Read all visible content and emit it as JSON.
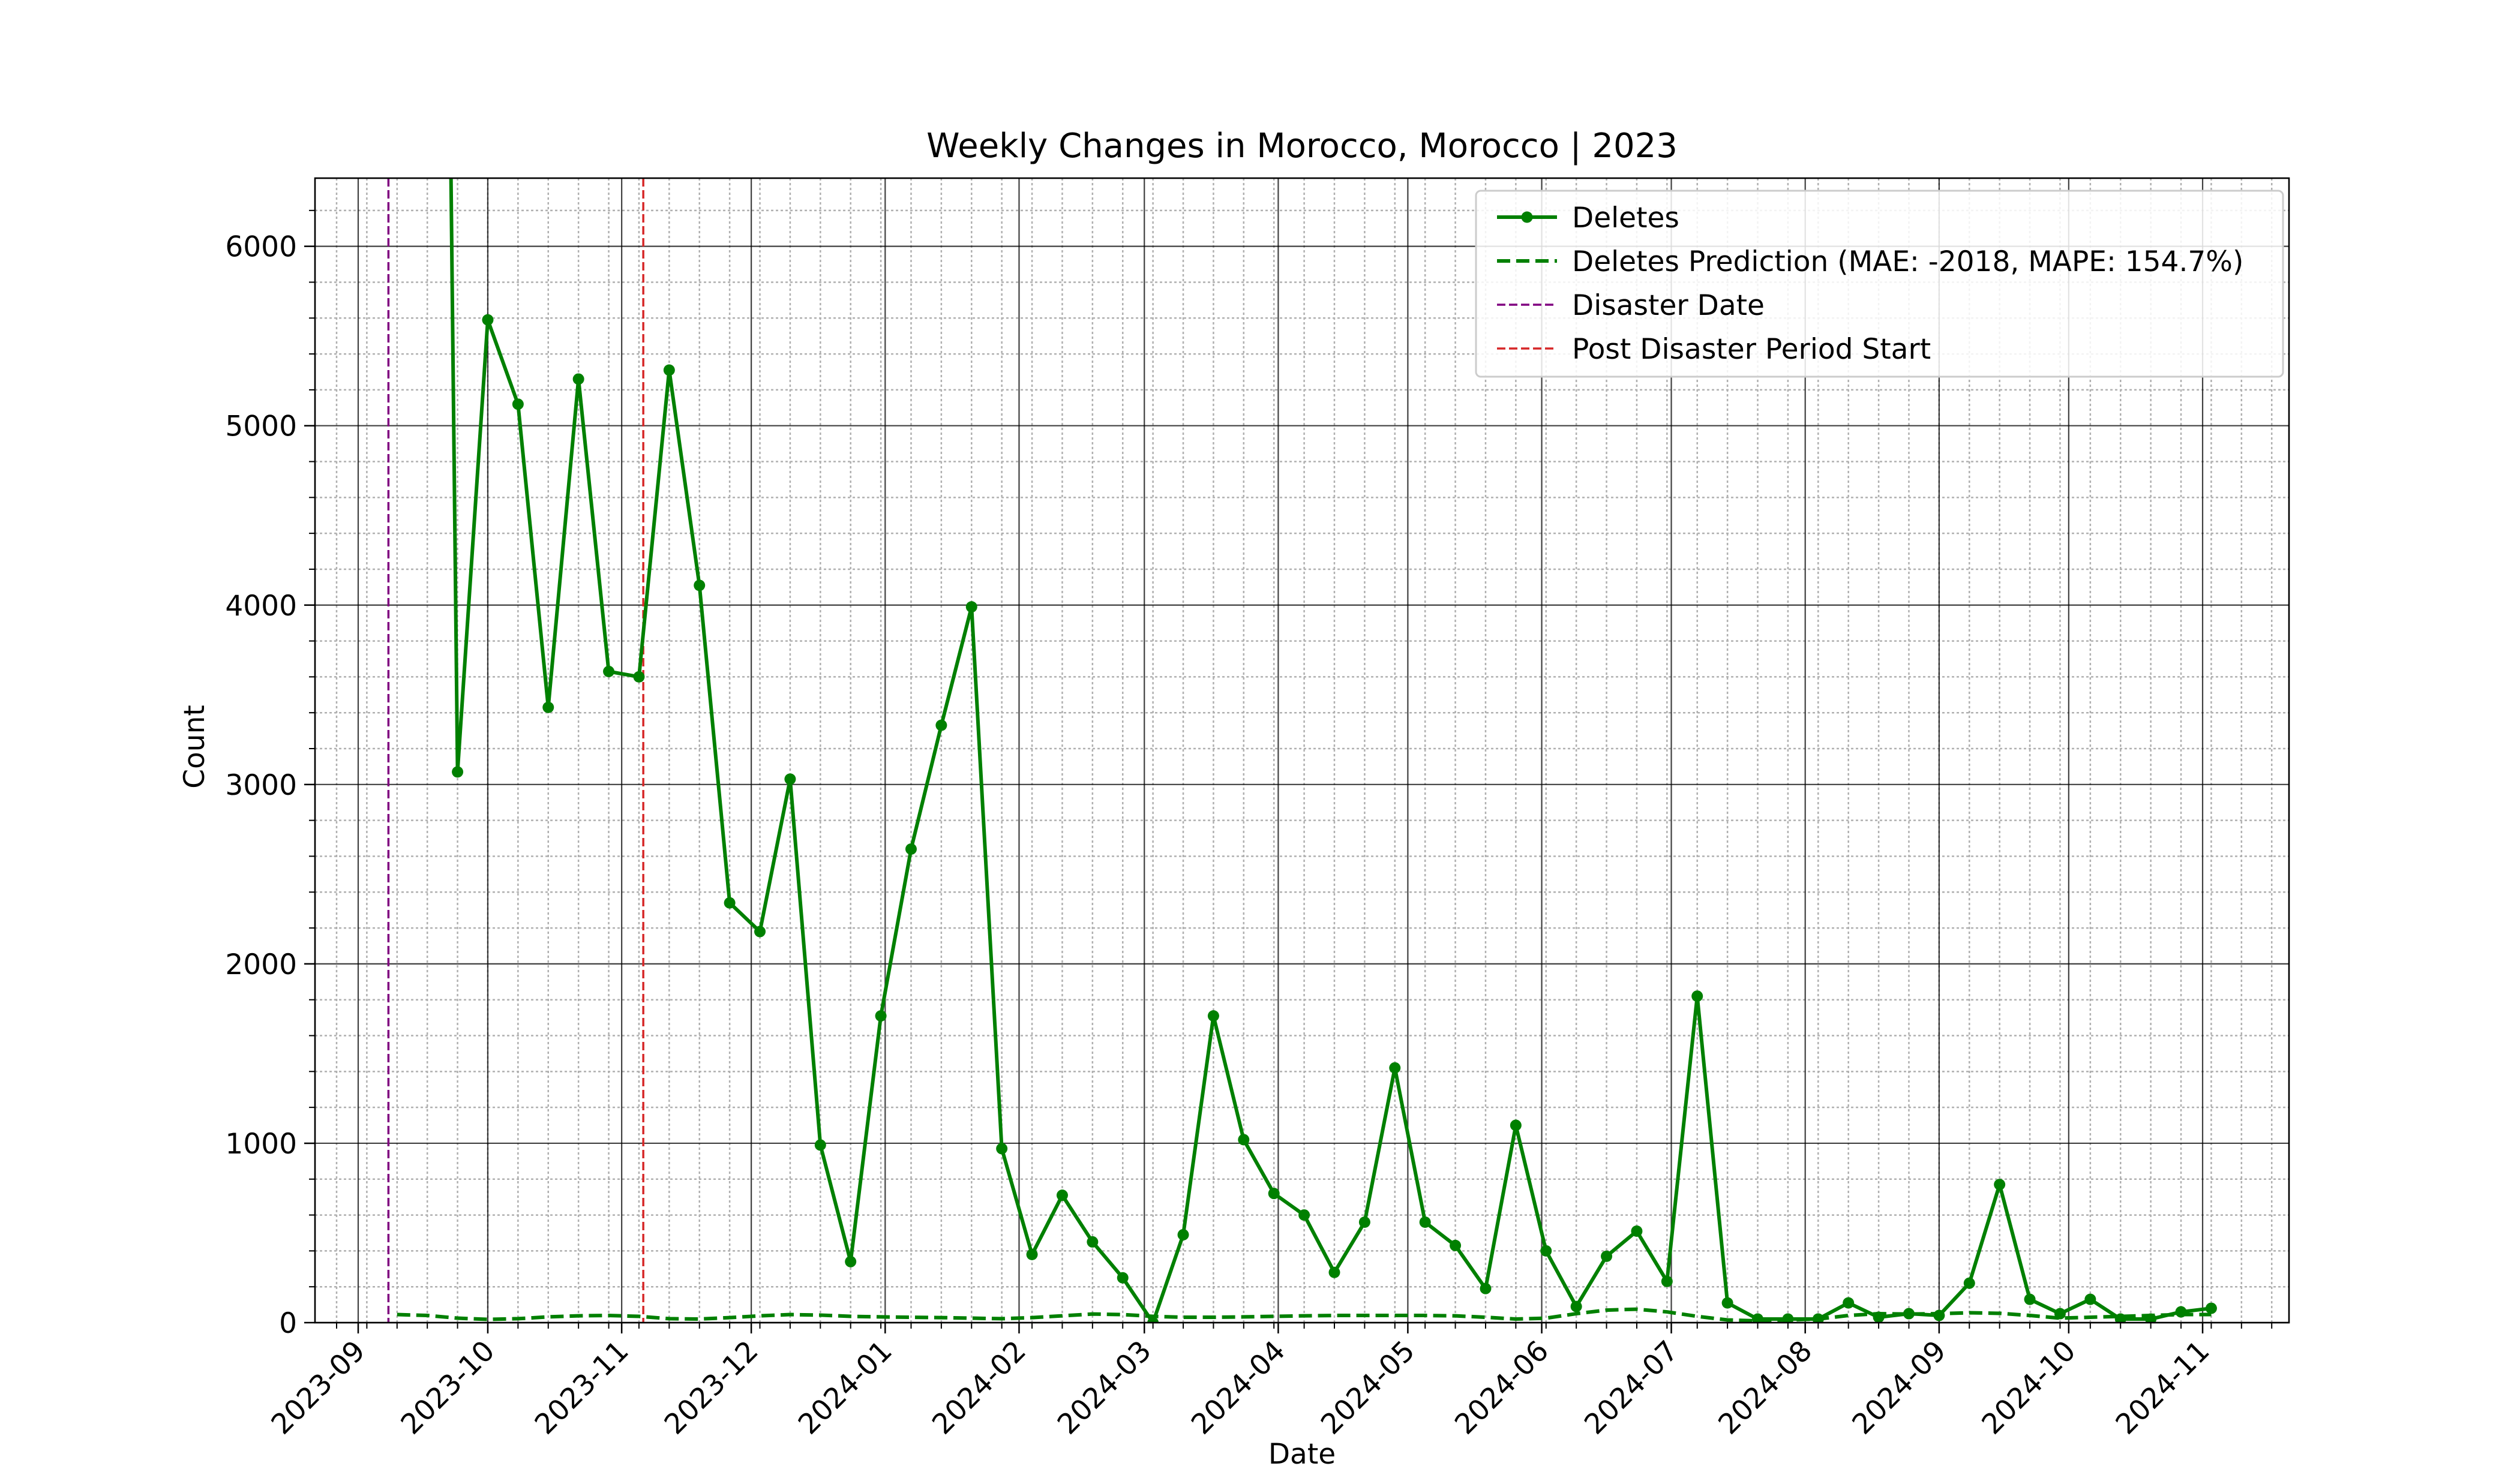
{
  "chart_data": {
    "type": "line",
    "title": "Weekly Changes in Morocco, Morocco | 2023",
    "xlabel": "Date",
    "ylabel": "Count",
    "xlim": [
      "2023-08-22",
      "2024-11-21"
    ],
    "ylim": [
      0,
      6380
    ],
    "x_ticks": [
      "2023-09",
      "2023-10",
      "2023-11",
      "2023-12",
      "2024-01",
      "2024-02",
      "2024-03",
      "2024-04",
      "2024-05",
      "2024-06",
      "2024-07",
      "2024-08",
      "2024-09",
      "2024-10",
      "2024-11"
    ],
    "x_tick_dates": [
      "2023-09-01",
      "2023-10-01",
      "2023-11-01",
      "2023-12-01",
      "2024-01-01",
      "2024-02-01",
      "2024-03-01",
      "2024-04-01",
      "2024-05-01",
      "2024-06-01",
      "2024-07-01",
      "2024-08-01",
      "2024-09-01",
      "2024-10-01",
      "2024-11-01"
    ],
    "y_ticks": [
      0,
      1000,
      2000,
      3000,
      4000,
      5000,
      6000
    ],
    "grid": true,
    "legend_position": "top-right",
    "series": [
      {
        "name": "Deletes",
        "color": "#008000",
        "style": "solid-markers",
        "x": [
          "2023-09-24",
          "2023-10-01",
          "2023-10-08",
          "2023-10-15",
          "2023-10-22",
          "2023-10-29",
          "2023-11-05",
          "2023-11-12",
          "2023-11-19",
          "2023-11-26",
          "2023-12-03",
          "2023-12-10",
          "2023-12-17",
          "2023-12-24",
          "2023-12-31",
          "2024-01-07",
          "2024-01-14",
          "2024-01-21",
          "2024-01-28",
          "2024-02-04",
          "2024-02-11",
          "2024-02-18",
          "2024-02-25",
          "2024-03-03",
          "2024-03-10",
          "2024-03-17",
          "2024-03-24",
          "2024-03-31",
          "2024-04-07",
          "2024-04-14",
          "2024-04-21",
          "2024-04-28",
          "2024-05-05",
          "2024-05-12",
          "2024-05-19",
          "2024-05-26",
          "2024-06-02",
          "2024-06-09",
          "2024-06-16",
          "2024-06-23",
          "2024-06-30",
          "2024-07-07",
          "2024-07-14",
          "2024-07-21",
          "2024-07-28",
          "2024-08-04",
          "2024-08-11",
          "2024-08-18",
          "2024-08-25",
          "2024-09-01",
          "2024-09-08",
          "2024-09-15",
          "2024-09-22",
          "2024-09-29",
          "2024-10-06",
          "2024-10-13",
          "2024-10-20",
          "2024-10-27",
          "2024-11-03"
        ],
        "values": [
          3070,
          5590,
          5120,
          3430,
          5260,
          3630,
          3600,
          5310,
          4110,
          2340,
          2180,
          3030,
          990,
          340,
          1710,
          2640,
          3330,
          3990,
          970,
          380,
          710,
          450,
          250,
          0,
          490,
          1710,
          1020,
          720,
          600,
          280,
          560,
          1420,
          560,
          430,
          190,
          1100,
          400,
          90,
          370,
          510,
          230,
          1820,
          110,
          20,
          20,
          20,
          110,
          30,
          50,
          40,
          220,
          770,
          130,
          50,
          130,
          20,
          20,
          60,
          80
        ]
      },
      {
        "name": "Deletes Prediction (MAE: -2018, MAPE: 154.7%)",
        "color": "#008000",
        "style": "dashed",
        "x": [
          "2023-09-10",
          "2023-09-17",
          "2023-09-24",
          "2023-10-01",
          "2023-10-08",
          "2023-10-15",
          "2023-10-22",
          "2023-10-29",
          "2023-11-05",
          "2023-11-12",
          "2023-11-19",
          "2023-11-26",
          "2023-12-03",
          "2023-12-10",
          "2023-12-17",
          "2023-12-24",
          "2023-12-31",
          "2024-01-07",
          "2024-01-14",
          "2024-01-21",
          "2024-01-28",
          "2024-02-04",
          "2024-02-11",
          "2024-02-18",
          "2024-02-25",
          "2024-03-03",
          "2024-03-10",
          "2024-03-17",
          "2024-03-24",
          "2024-03-31",
          "2024-04-07",
          "2024-04-14",
          "2024-04-21",
          "2024-04-28",
          "2024-05-05",
          "2024-05-12",
          "2024-05-19",
          "2024-05-26",
          "2024-06-02",
          "2024-06-09",
          "2024-06-16",
          "2024-06-23",
          "2024-06-30",
          "2024-07-07",
          "2024-07-14",
          "2024-07-21",
          "2024-07-28",
          "2024-08-04",
          "2024-08-11",
          "2024-08-18",
          "2024-08-25",
          "2024-09-01",
          "2024-09-08",
          "2024-09-15",
          "2024-09-22",
          "2024-09-29",
          "2024-10-06",
          "2024-10-13",
          "2024-10-20",
          "2024-10-27",
          "2024-11-03"
        ],
        "values": [
          45,
          40,
          25,
          18,
          22,
          32,
          38,
          40,
          35,
          22,
          20,
          28,
          38,
          45,
          42,
          35,
          32,
          30,
          28,
          25,
          22,
          28,
          38,
          48,
          45,
          35,
          30,
          30,
          32,
          35,
          38,
          40,
          40,
          40,
          40,
          38,
          30,
          20,
          25,
          50,
          70,
          75,
          60,
          35,
          15,
          10,
          15,
          20,
          40,
          50,
          48,
          50,
          55,
          52,
          40,
          25,
          30,
          35,
          40,
          45,
          45
        ]
      }
    ],
    "vlines": [
      {
        "name": "Disaster Date",
        "x": "2023-09-08",
        "color": "#800080"
      },
      {
        "name": "Post Disaster Period Start",
        "x": "2023-11-06",
        "color": "#d62728"
      }
    ],
    "legend": [
      {
        "label": "Deletes",
        "color": "#008000",
        "style": "solid-markers"
      },
      {
        "label": "Deletes Prediction (MAE: -2018, MAPE: 154.7%)",
        "color": "#008000",
        "style": "dashed"
      },
      {
        "label": "Disaster Date",
        "color": "#800080",
        "style": "thin-dashed"
      },
      {
        "label": "Post Disaster Period Start",
        "color": "#d62728",
        "style": "thin-dashed"
      }
    ]
  }
}
